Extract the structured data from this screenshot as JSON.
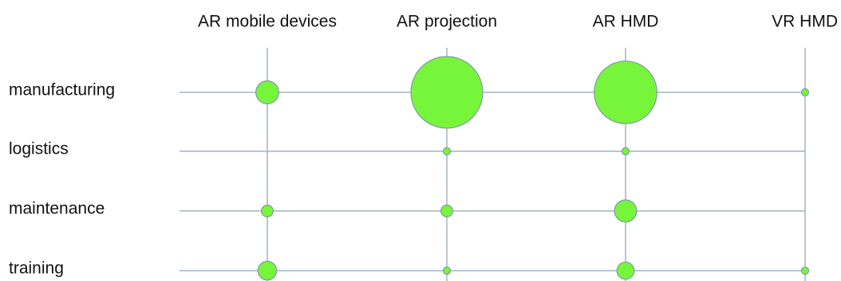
{
  "chart_data": {
    "type": "bubble-matrix",
    "columns": [
      "AR mobile devices",
      "AR projection",
      "AR HMD",
      "VR HMD"
    ],
    "rows": [
      "manufacturing",
      "logistics",
      "maintenance",
      "training"
    ],
    "values": [
      [
        30,
        295,
        225,
        3
      ],
      [
        0,
        3,
        3,
        0
      ],
      [
        8,
        8,
        28,
        0
      ],
      [
        20,
        3,
        17,
        3
      ]
    ],
    "grid": true,
    "legend": "none",
    "colors": {
      "bubble_fill": "#77f53b",
      "bubble_stroke": "#7f9aa6",
      "grid": "#a4b3c4",
      "text": "#111111"
    }
  }
}
